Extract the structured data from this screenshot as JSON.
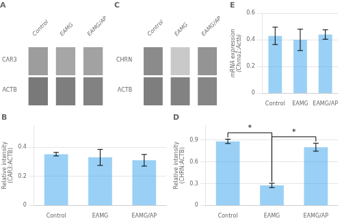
{
  "chart_data": [
    {
      "type": "heatmap",
      "title": "A",
      "categories": [
        "Control",
        "EAMG",
        "EAMG/AP"
      ],
      "rows": [
        "CAR3",
        "ACTB"
      ],
      "cells": [
        [
          0.55,
          0.5,
          0.52
        ],
        [
          0.75,
          0.72,
          0.7
        ]
      ]
    },
    {
      "type": "bar",
      "title": "B",
      "categories": [
        "Control",
        "EAMG",
        "EAMG/AP"
      ],
      "values": [
        0.352,
        0.33,
        0.31
      ],
      "errors": [
        0.012,
        0.055,
        0.04
      ],
      "ylabel": "Relative intensity\n(CAR3:ACTB)",
      "ylim": [
        0,
        0.55
      ],
      "yticks": [
        0,
        0.2,
        0.4
      ]
    },
    {
      "type": "heatmap",
      "title": "C",
      "categories": [
        "Control",
        "EAMG",
        "EAMG/AP"
      ],
      "rows": [
        "CHRN",
        "ACTB"
      ],
      "cells": [
        [
          0.65,
          0.3,
          0.6
        ],
        [
          0.72,
          0.7,
          0.68
        ]
      ]
    },
    {
      "type": "bar",
      "title": "D",
      "categories": [
        "Control",
        "EAMG",
        "EAMG/AP"
      ],
      "values": [
        0.88,
        0.275,
        0.8
      ],
      "errors": [
        0.03,
        0.03,
        0.055
      ],
      "ylabel": "Relative intensity\n(CHRN:ACTB)",
      "ylim": [
        0,
        1.1
      ],
      "yticks": [
        0,
        0.3,
        0.6,
        0.9
      ],
      "annotations": [
        {
          "text": "*",
          "between": [
            "Control",
            "EAMG"
          ]
        },
        {
          "text": "*",
          "between": [
            "EAMG",
            "EAMG/AP"
          ]
        }
      ]
    },
    {
      "type": "bar",
      "title": "E",
      "categories": [
        "Control",
        "EAMG",
        "EAMG/AP"
      ],
      "values": [
        0.43,
        0.4,
        0.44
      ],
      "errors": [
        0.065,
        0.08,
        0.035
      ],
      "ylabel": "mRNA expression\n(Chrna1:Actb)",
      "ylim": [
        0,
        0.6
      ],
      "yticks": [
        0,
        0.2,
        0.4,
        0.6
      ]
    }
  ]
}
